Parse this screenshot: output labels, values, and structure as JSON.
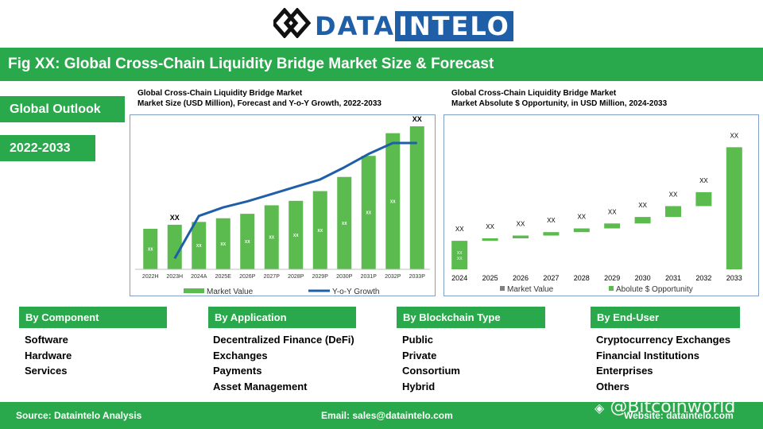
{
  "brand": {
    "part1": "DATA",
    "part2": "INTELO"
  },
  "title": "Fig XX: Global Cross-Chain Liquidity Bridge Market Size & Forecast",
  "side": {
    "outlook": "Global Outlook",
    "years": "2022-2033"
  },
  "colors": {
    "green": "#2aa94c",
    "bar_green": "#5cbb4f",
    "line_blue": "#1f5fa8",
    "grey": "#808080"
  },
  "chart_data": [
    {
      "type": "bar",
      "title_line1": "Global Cross-Chain Liquidity Bridge Market",
      "title_line2": "Market Size (USD Million), Forecast and Y-o-Y Growth, 2022-2033",
      "categories": [
        "2022H",
        "2023H",
        "2024A",
        "2025E",
        "2026P",
        "2027P",
        "2028P",
        "2029P",
        "2030P",
        "2031P",
        "2032P",
        "2033P"
      ],
      "series": [
        {
          "name": "Market Value",
          "type": "bar",
          "values": [
            1.0,
            1.1,
            1.17,
            1.26,
            1.37,
            1.58,
            1.69,
            1.93,
            2.28,
            2.8,
            3.36,
            3.53
          ]
        },
        {
          "name": "Y-o-Y Growth",
          "type": "line",
          "values": [
            null,
            0.05,
            0.4,
            0.47,
            0.52,
            0.58,
            0.64,
            0.7,
            0.8,
            0.91,
            1.0,
            1.0
          ]
        }
      ],
      "data_labels": [
        "XX",
        "XX",
        "XX",
        "XX",
        "XX",
        "XX",
        "XX",
        "XX",
        "XX",
        "XX",
        "XX",
        "XX"
      ],
      "grid": false,
      "legend": "bottom"
    },
    {
      "type": "bar",
      "title_line1": "Global Cross-Chain Liquidity Bridge Market",
      "title_line2": "Market Absolute $ Opportunity, in USD Million, 2024-2033",
      "categories": [
        "2024",
        "2025",
        "2026",
        "2027",
        "2028",
        "2029",
        "2030",
        "2031",
        "2032",
        "2033"
      ],
      "series": [
        {
          "name": "Market Value",
          "values": [
            0.92,
            null,
            null,
            null,
            null,
            null,
            null,
            null,
            null,
            3.94
          ]
        },
        {
          "name": "Abolute $ Opportunity",
          "base": [
            null,
            0.92,
            1.0,
            1.09,
            1.2,
            1.32,
            1.48,
            1.69,
            2.04,
            null
          ],
          "values": [
            null,
            0.08,
            0.09,
            0.11,
            0.12,
            0.16,
            0.21,
            0.35,
            0.45,
            null
          ]
        }
      ],
      "data_labels": [
        "XX",
        "XX",
        "XX",
        "XX",
        "XX",
        "XX",
        "XX",
        "XX",
        "XX",
        "XX"
      ],
      "grid": false,
      "legend": "bottom"
    }
  ],
  "segments": [
    {
      "header": "By Component",
      "items": [
        "Software",
        "Hardware",
        "Services"
      ]
    },
    {
      "header": "By Application",
      "items": [
        "Decentralized Finance (DeFi)",
        "Exchanges",
        "Payments",
        "Asset Management"
      ]
    },
    {
      "header": "By Blockchain Type",
      "items": [
        "Public",
        "Private",
        "Consortium",
        "Hybrid"
      ]
    },
    {
      "header": "By End-User",
      "items": [
        "Cryptocurrency Exchanges",
        "Financial Institutions",
        "Enterprises",
        "Others"
      ]
    }
  ],
  "footer": {
    "source": "Source: Dataintelo  Analysis",
    "email": "Email: sales@dataintelo.com",
    "website": "Website: dataintelo.com"
  },
  "watermark": "@Bitcoinworld"
}
